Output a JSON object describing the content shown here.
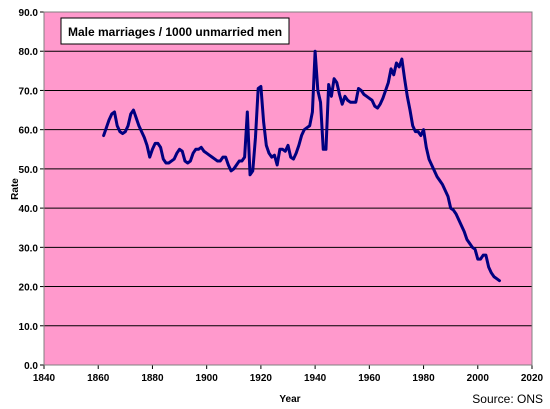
{
  "chart_data": {
    "type": "line",
    "legend_label": "Male marriages / 1000 unmarried men",
    "xlabel": "Year",
    "ylabel": "Rate",
    "source": "Source: ONS",
    "xlim": [
      1840,
      2020
    ],
    "ylim": [
      0,
      90
    ],
    "x_ticks": [
      "1840",
      "1860",
      "1880",
      "1900",
      "1920",
      "1940",
      "1960",
      "1980",
      "2000",
      "2020"
    ],
    "y_ticks": [
      "0.0",
      "10.0",
      "20.0",
      "30.0",
      "40.0",
      "50.0",
      "60.0",
      "70.0",
      "80.0",
      "90.0"
    ],
    "grid": true,
    "colors": {
      "plot_background": "#FF99CC",
      "line": "#000080",
      "grid": "#000000"
    },
    "series": [
      {
        "name": "Male marriages / 1000 unmarried men",
        "x": [
          1862,
          1863,
          1864,
          1865,
          1866,
          1867,
          1868,
          1869,
          1870,
          1871,
          1872,
          1873,
          1874,
          1875,
          1876,
          1877,
          1878,
          1879,
          1880,
          1881,
          1882,
          1883,
          1884,
          1885,
          1886,
          1887,
          1888,
          1889,
          1890,
          1891,
          1892,
          1893,
          1894,
          1895,
          1896,
          1897,
          1898,
          1899,
          1900,
          1901,
          1902,
          1903,
          1904,
          1905,
          1906,
          1907,
          1908,
          1909,
          1910,
          1911,
          1912,
          1913,
          1914,
          1915,
          1916,
          1917,
          1918,
          1919,
          1920,
          1921,
          1922,
          1923,
          1924,
          1925,
          1926,
          1927,
          1928,
          1929,
          1930,
          1931,
          1932,
          1933,
          1934,
          1935,
          1936,
          1937,
          1938,
          1939,
          1940,
          1941,
          1942,
          1943,
          1944,
          1945,
          1946,
          1947,
          1948,
          1949,
          1950,
          1951,
          1952,
          1953,
          1954,
          1955,
          1956,
          1957,
          1958,
          1959,
          1960,
          1961,
          1962,
          1963,
          1964,
          1965,
          1966,
          1967,
          1968,
          1969,
          1970,
          1971,
          1972,
          1973,
          1974,
          1975,
          1976,
          1977,
          1978,
          1979,
          1980,
          1981,
          1982,
          1983,
          1984,
          1985,
          1986,
          1987,
          1988,
          1989,
          1990,
          1991,
          1992,
          1993,
          1994,
          1995,
          1996,
          1997,
          1998,
          1999,
          2000,
          2001,
          2002,
          2003,
          2004,
          2005,
          2006,
          2007,
          2008
        ],
        "values": [
          58.5,
          60.5,
          62.5,
          64.0,
          64.5,
          61.0,
          59.5,
          59.0,
          59.5,
          61.0,
          64.0,
          65.0,
          63.0,
          61.0,
          59.5,
          58.0,
          56.0,
          53.0,
          55.0,
          56.5,
          56.5,
          55.5,
          52.5,
          51.5,
          51.5,
          52.0,
          52.5,
          54.0,
          55.0,
          54.5,
          52.0,
          51.5,
          52.0,
          54.0,
          55.0,
          55.0,
          55.5,
          54.5,
          54.0,
          53.5,
          53.0,
          52.5,
          52.0,
          52.0,
          53.0,
          53.0,
          51.0,
          49.5,
          50.0,
          51.0,
          52.0,
          52.0,
          53.0,
          64.5,
          48.5,
          49.5,
          58.0,
          70.5,
          71.0,
          62.0,
          56.0,
          54.0,
          53.0,
          53.5,
          51.0,
          55.0,
          55.0,
          54.5,
          56.0,
          53.0,
          52.5,
          54.0,
          56.0,
          58.5,
          60.0,
          60.5,
          61.0,
          64.5,
          80.0,
          70.0,
          67.0,
          55.0,
          55.0,
          71.5,
          68.5,
          73.0,
          72.0,
          69.0,
          66.5,
          68.5,
          67.5,
          67.0,
          67.0,
          67.0,
          70.5,
          70.0,
          69.0,
          68.5,
          68.0,
          67.5,
          66.0,
          65.5,
          66.5,
          68.0,
          70.0,
          72.0,
          75.5,
          74.0,
          77.0,
          76.0,
          78.0,
          73.0,
          68.5,
          65.0,
          61.0,
          59.5,
          59.5,
          58.5,
          60.0,
          55.5,
          52.5,
          51.0,
          49.5,
          48.0,
          47.0,
          46.0,
          44.5,
          43.0,
          40.0,
          39.5,
          38.5,
          37.0,
          35.5,
          34.0,
          32.0,
          31.0,
          30.0,
          29.5,
          27.0,
          27.0,
          28.0,
          28.0,
          25.0,
          23.5,
          22.5,
          22.0,
          21.5
        ]
      }
    ]
  }
}
